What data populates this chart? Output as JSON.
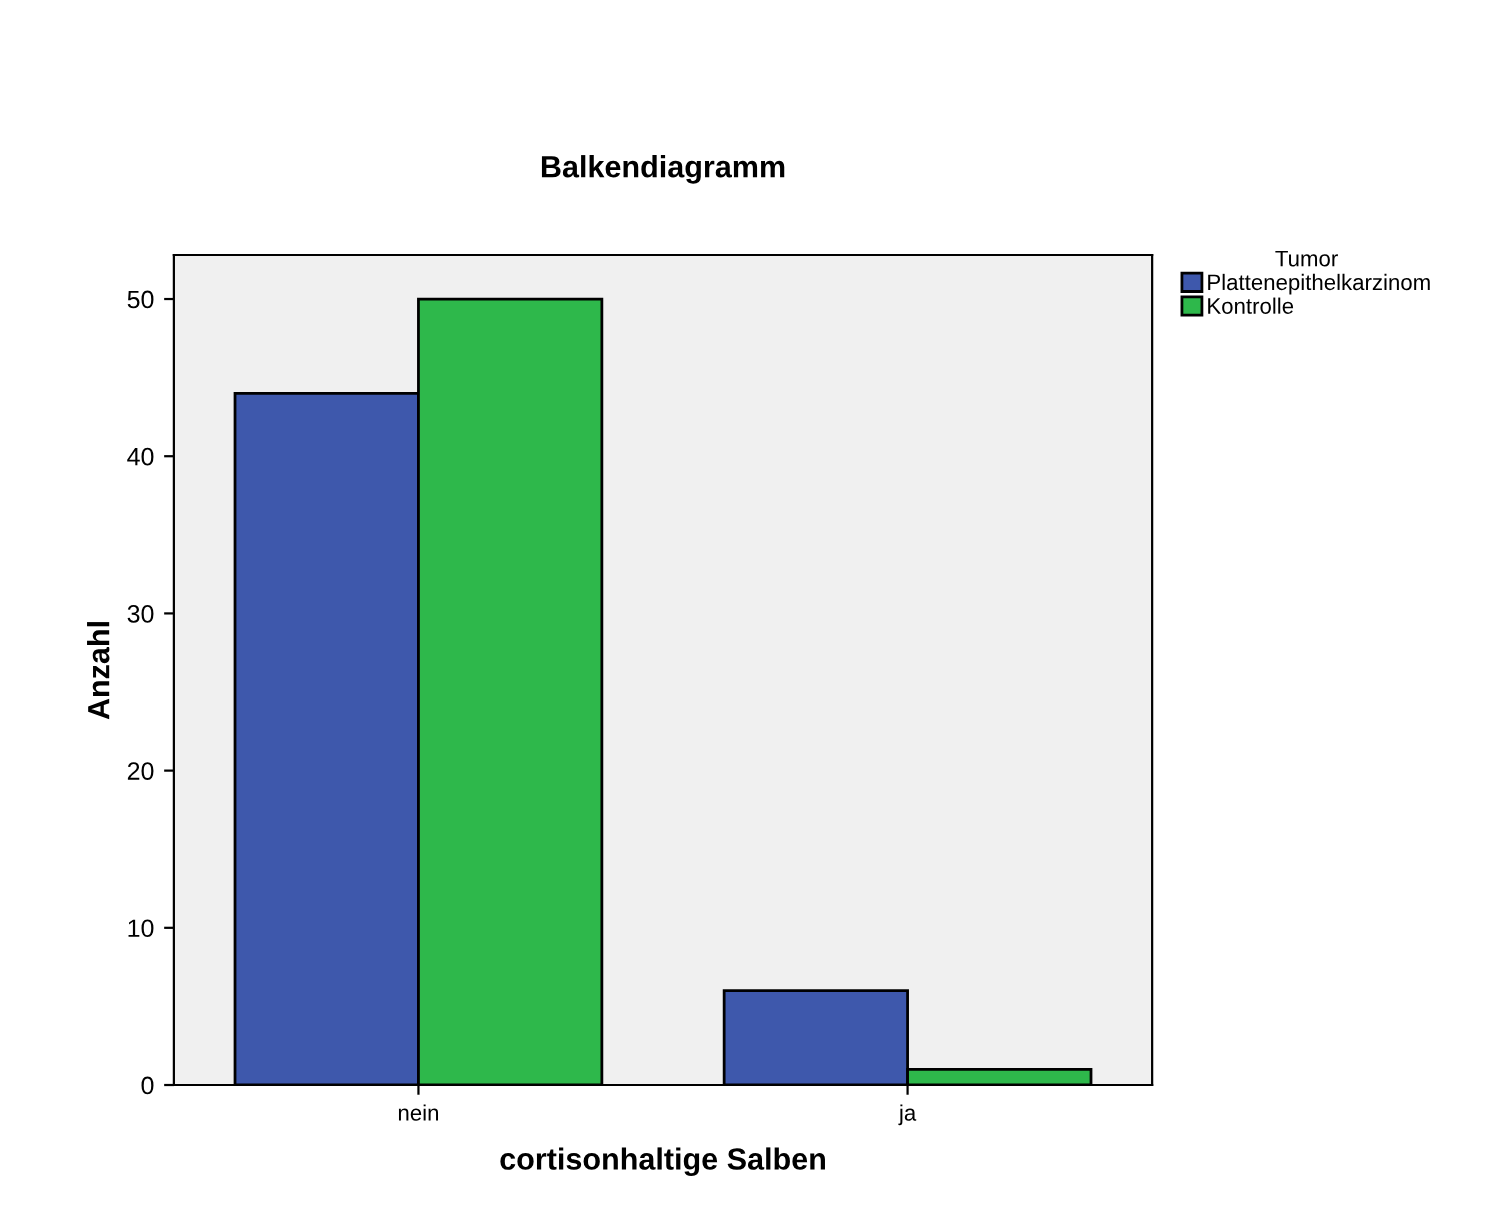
{
  "chart_data": {
    "type": "bar",
    "title": "Balkendiagramm",
    "xlabel": "cortisonhaltige Salben",
    "ylabel": "Anzahl",
    "legend_title": "Tumor",
    "categories": [
      "nein",
      "ja"
    ],
    "series": [
      {
        "name": "Plattenepithelkarzinom",
        "color": "#3e58ac",
        "values": [
          44,
          6
        ]
      },
      {
        "name": "Kontrolle",
        "color": "#2eb84b",
        "values": [
          50,
          1
        ]
      }
    ],
    "ylim": [
      0,
      52.8
    ],
    "yticks": [
      0,
      10,
      20,
      30,
      40,
      50
    ],
    "grid": false,
    "legend": "top right"
  }
}
